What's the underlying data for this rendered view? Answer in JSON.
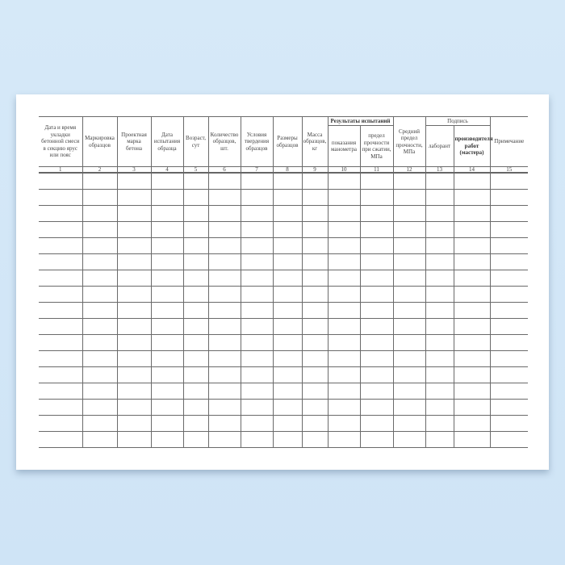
{
  "form": {
    "columns": [
      "Дата и время укладки бетонной смеси в секцию ярус или пояс",
      "Маркировка образцов",
      "Проектная марка бетона",
      "Дата испытания образца",
      "Возраст, сут",
      "Количество образцов, шт.",
      "Условия твердения образцов",
      "Размеры образцов",
      "Масса образцов, кг",
      "показания манометра",
      "предел прочности при сжатии, МПа",
      "Средний предел прочности, МПа",
      "лаборант",
      "производителя работ (мастера)",
      "Примечание"
    ],
    "group_results": "Результаты испытаний",
    "group_signature": "Подпись",
    "numbers": [
      "1",
      "2",
      "3",
      "4",
      "5",
      "6",
      "7",
      "8",
      "9",
      "10",
      "11",
      "12",
      "13",
      "14",
      "15"
    ]
  }
}
